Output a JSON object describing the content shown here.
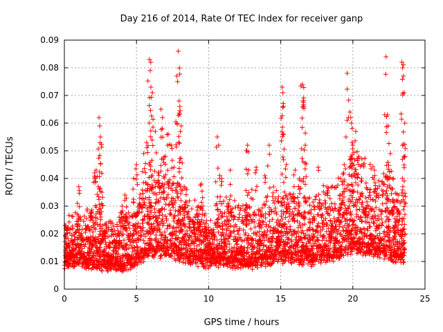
{
  "chart_data": {
    "type": "scatter",
    "title": "Day 216 of 2014, Rate Of TEC Index for receiver ganp",
    "xlabel": "GPS time / hours",
    "ylabel": "ROTI / TECUs",
    "xlim": [
      0,
      25
    ],
    "ylim": [
      0,
      0.09
    ],
    "xticks": [
      0,
      5,
      10,
      15,
      20,
      25
    ],
    "xtick_labels": [
      "0",
      "5",
      "10",
      "15",
      "20",
      "25"
    ],
    "yticks": [
      0,
      0.01,
      0.02,
      0.03,
      0.04,
      0.05,
      0.06,
      0.07,
      0.08,
      0.09
    ],
    "ytick_labels": [
      "0",
      "0.01",
      "0.02",
      "0.03",
      "0.04",
      "0.05",
      "0.06",
      "0.07",
      "0.08",
      "0.09"
    ],
    "grid": true,
    "marker": "+",
    "series": [
      {
        "name": "ROTI",
        "color": "#ff0000",
        "points": [
          [
            0.1,
            0.023
          ],
          [
            0.2,
            0.011
          ],
          [
            0.3,
            0.008
          ],
          [
            0.5,
            0.014
          ],
          [
            0.7,
            0.019
          ],
          [
            0.9,
            0.031
          ],
          [
            1.0,
            0.037
          ],
          [
            1.1,
            0.026
          ],
          [
            1.3,
            0.012
          ],
          [
            1.5,
            0.009
          ],
          [
            1.7,
            0.015
          ],
          [
            1.9,
            0.028
          ],
          [
            2.1,
            0.042
          ],
          [
            2.2,
            0.043
          ],
          [
            2.4,
            0.062
          ],
          [
            2.45,
            0.059
          ],
          [
            2.5,
            0.055
          ],
          [
            2.6,
            0.035
          ],
          [
            2.8,
            0.02
          ],
          [
            3.0,
            0.012
          ],
          [
            3.2,
            0.008
          ],
          [
            3.5,
            0.017
          ],
          [
            3.8,
            0.026
          ],
          [
            4.0,
            0.03
          ],
          [
            4.2,
            0.034
          ],
          [
            4.5,
            0.024
          ],
          [
            4.8,
            0.04
          ],
          [
            5.0,
            0.045
          ],
          [
            5.2,
            0.031
          ],
          [
            5.5,
            0.049
          ],
          [
            5.7,
            0.053
          ],
          [
            5.9,
            0.083
          ],
          [
            5.95,
            0.079
          ],
          [
            6.0,
            0.073
          ],
          [
            6.1,
            0.071
          ],
          [
            6.3,
            0.057
          ],
          [
            6.5,
            0.042
          ],
          [
            6.7,
            0.065
          ],
          [
            6.8,
            0.062
          ],
          [
            7.0,
            0.048
          ],
          [
            7.2,
            0.056
          ],
          [
            7.4,
            0.052
          ],
          [
            7.6,
            0.044
          ],
          [
            7.8,
            0.077
          ],
          [
            7.85,
            0.075
          ],
          [
            7.9,
            0.086
          ],
          [
            7.95,
            0.068
          ],
          [
            8.0,
            0.066
          ],
          [
            8.1,
            0.059
          ],
          [
            8.3,
            0.037
          ],
          [
            8.6,
            0.028
          ],
          [
            9.0,
            0.024
          ],
          [
            9.3,
            0.03
          ],
          [
            9.5,
            0.038
          ],
          [
            9.8,
            0.022
          ],
          [
            10.0,
            0.016
          ],
          [
            10.3,
            0.02
          ],
          [
            10.6,
            0.055
          ],
          [
            10.7,
            0.052
          ],
          [
            10.9,
            0.04
          ],
          [
            11.1,
            0.018
          ],
          [
            11.3,
            0.025
          ],
          [
            11.5,
            0.043
          ],
          [
            11.8,
            0.032
          ],
          [
            12.0,
            0.021
          ],
          [
            12.3,
            0.015
          ],
          [
            12.6,
            0.05
          ],
          [
            12.7,
            0.052
          ],
          [
            13.0,
            0.036
          ],
          [
            13.3,
            0.044
          ],
          [
            13.6,
            0.028
          ],
          [
            13.9,
            0.041
          ],
          [
            14.2,
            0.052
          ],
          [
            14.5,
            0.037
          ],
          [
            14.8,
            0.025
          ],
          [
            15.1,
            0.073
          ],
          [
            15.15,
            0.071
          ],
          [
            15.2,
            0.056
          ],
          [
            15.4,
            0.045
          ],
          [
            15.7,
            0.033
          ],
          [
            16.0,
            0.043
          ],
          [
            16.3,
            0.04
          ],
          [
            16.5,
            0.074
          ],
          [
            16.55,
            0.068
          ],
          [
            16.6,
            0.066
          ],
          [
            16.7,
            0.052
          ],
          [
            17.0,
            0.033
          ],
          [
            17.3,
            0.03
          ],
          [
            17.6,
            0.044
          ],
          [
            17.9,
            0.027
          ],
          [
            18.2,
            0.037
          ],
          [
            18.5,
            0.023
          ],
          [
            18.8,
            0.029
          ],
          [
            19.1,
            0.034
          ],
          [
            19.4,
            0.045
          ],
          [
            19.6,
            0.078
          ],
          [
            19.8,
            0.064
          ],
          [
            19.85,
            0.062
          ],
          [
            19.9,
            0.06
          ],
          [
            20.0,
            0.052
          ],
          [
            20.2,
            0.057
          ],
          [
            20.4,
            0.048
          ],
          [
            20.6,
            0.04
          ],
          [
            20.9,
            0.033
          ],
          [
            21.2,
            0.036
          ],
          [
            21.5,
            0.043
          ],
          [
            21.8,
            0.034
          ],
          [
            22.1,
            0.038
          ],
          [
            22.3,
            0.084
          ],
          [
            22.4,
            0.063
          ],
          [
            22.45,
            0.059
          ],
          [
            22.6,
            0.049
          ],
          [
            22.8,
            0.04
          ],
          [
            23.0,
            0.032
          ],
          [
            23.2,
            0.027
          ],
          [
            23.4,
            0.082
          ],
          [
            23.45,
            0.08
          ],
          [
            23.5,
            0.077
          ],
          [
            23.55,
            0.071
          ],
          [
            23.6,
            0.06
          ]
        ],
        "band": {
          "description": "dense baseline scatter of samples between roughly 0.005 and 0.03 TECU across all hours",
          "hourly_baseline": [
            [
              0,
              0.012
            ],
            [
              1,
              0.013
            ],
            [
              2,
              0.012
            ],
            [
              3,
              0.011
            ],
            [
              4,
              0.011
            ],
            [
              5,
              0.013
            ],
            [
              6,
              0.016
            ],
            [
              7,
              0.016
            ],
            [
              8,
              0.015
            ],
            [
              9,
              0.013
            ],
            [
              10,
              0.012
            ],
            [
              11,
              0.013
            ],
            [
              12,
              0.012
            ],
            [
              13,
              0.012
            ],
            [
              14,
              0.013
            ],
            [
              15,
              0.014
            ],
            [
              16,
              0.014
            ],
            [
              17,
              0.013
            ],
            [
              18,
              0.014
            ],
            [
              19,
              0.015
            ],
            [
              20,
              0.018
            ],
            [
              21,
              0.017
            ],
            [
              22,
              0.016
            ],
            [
              23,
              0.014
            ],
            [
              23.6,
              0.013
            ]
          ],
          "hourly_spread": [
            [
              0,
              0.01
            ],
            [
              1,
              0.012
            ],
            [
              2,
              0.012
            ],
            [
              3,
              0.01
            ],
            [
              4,
              0.011
            ],
            [
              5,
              0.014
            ],
            [
              6,
              0.02
            ],
            [
              7,
              0.018
            ],
            [
              8,
              0.016
            ],
            [
              9,
              0.013
            ],
            [
              10,
              0.011
            ],
            [
              11,
              0.014
            ],
            [
              12,
              0.013
            ],
            [
              13,
              0.013
            ],
            [
              14,
              0.014
            ],
            [
              15,
              0.016
            ],
            [
              16,
              0.015
            ],
            [
              17,
              0.015
            ],
            [
              18,
              0.016
            ],
            [
              19,
              0.018
            ],
            [
              20,
              0.022
            ],
            [
              21,
              0.02
            ],
            [
              22,
              0.019
            ],
            [
              23,
              0.016
            ],
            [
              23.6,
              0.014
            ]
          ],
          "sample_step_hours": 0.008,
          "min_value": 0.004
        }
      }
    ]
  }
}
